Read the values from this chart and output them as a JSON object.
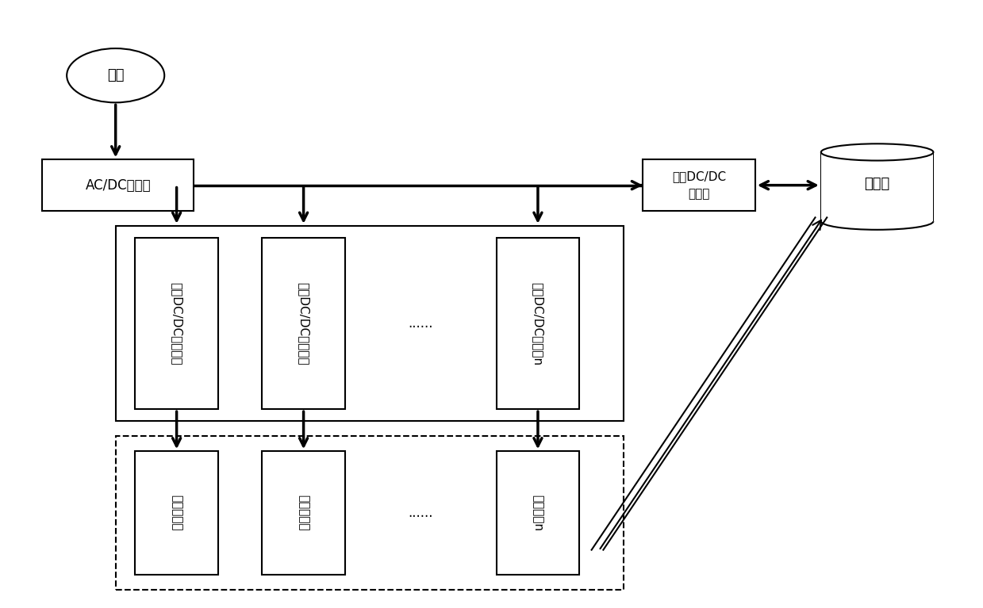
{
  "bg_color": "#ffffff",
  "line_color": "#000000",
  "box_color": "#ffffff",
  "ellipse_label": "电网",
  "acdc_label": "AC/DC变流器",
  "bidir_line1": "双向DC/DC",
  "bidir_line2": "变流器",
  "storage_label": "储能堆",
  "unidir_texts": [
    "单向DC/DC变流器１",
    "单向DC/DC变流器２",
    "单向DC/DC变流器n"
  ],
  "car_texts": [
    "电动汽车１",
    "电动汽车２",
    "电动汽车n"
  ],
  "dots": "......",
  "font_size": 12,
  "font_family": "SimSun"
}
